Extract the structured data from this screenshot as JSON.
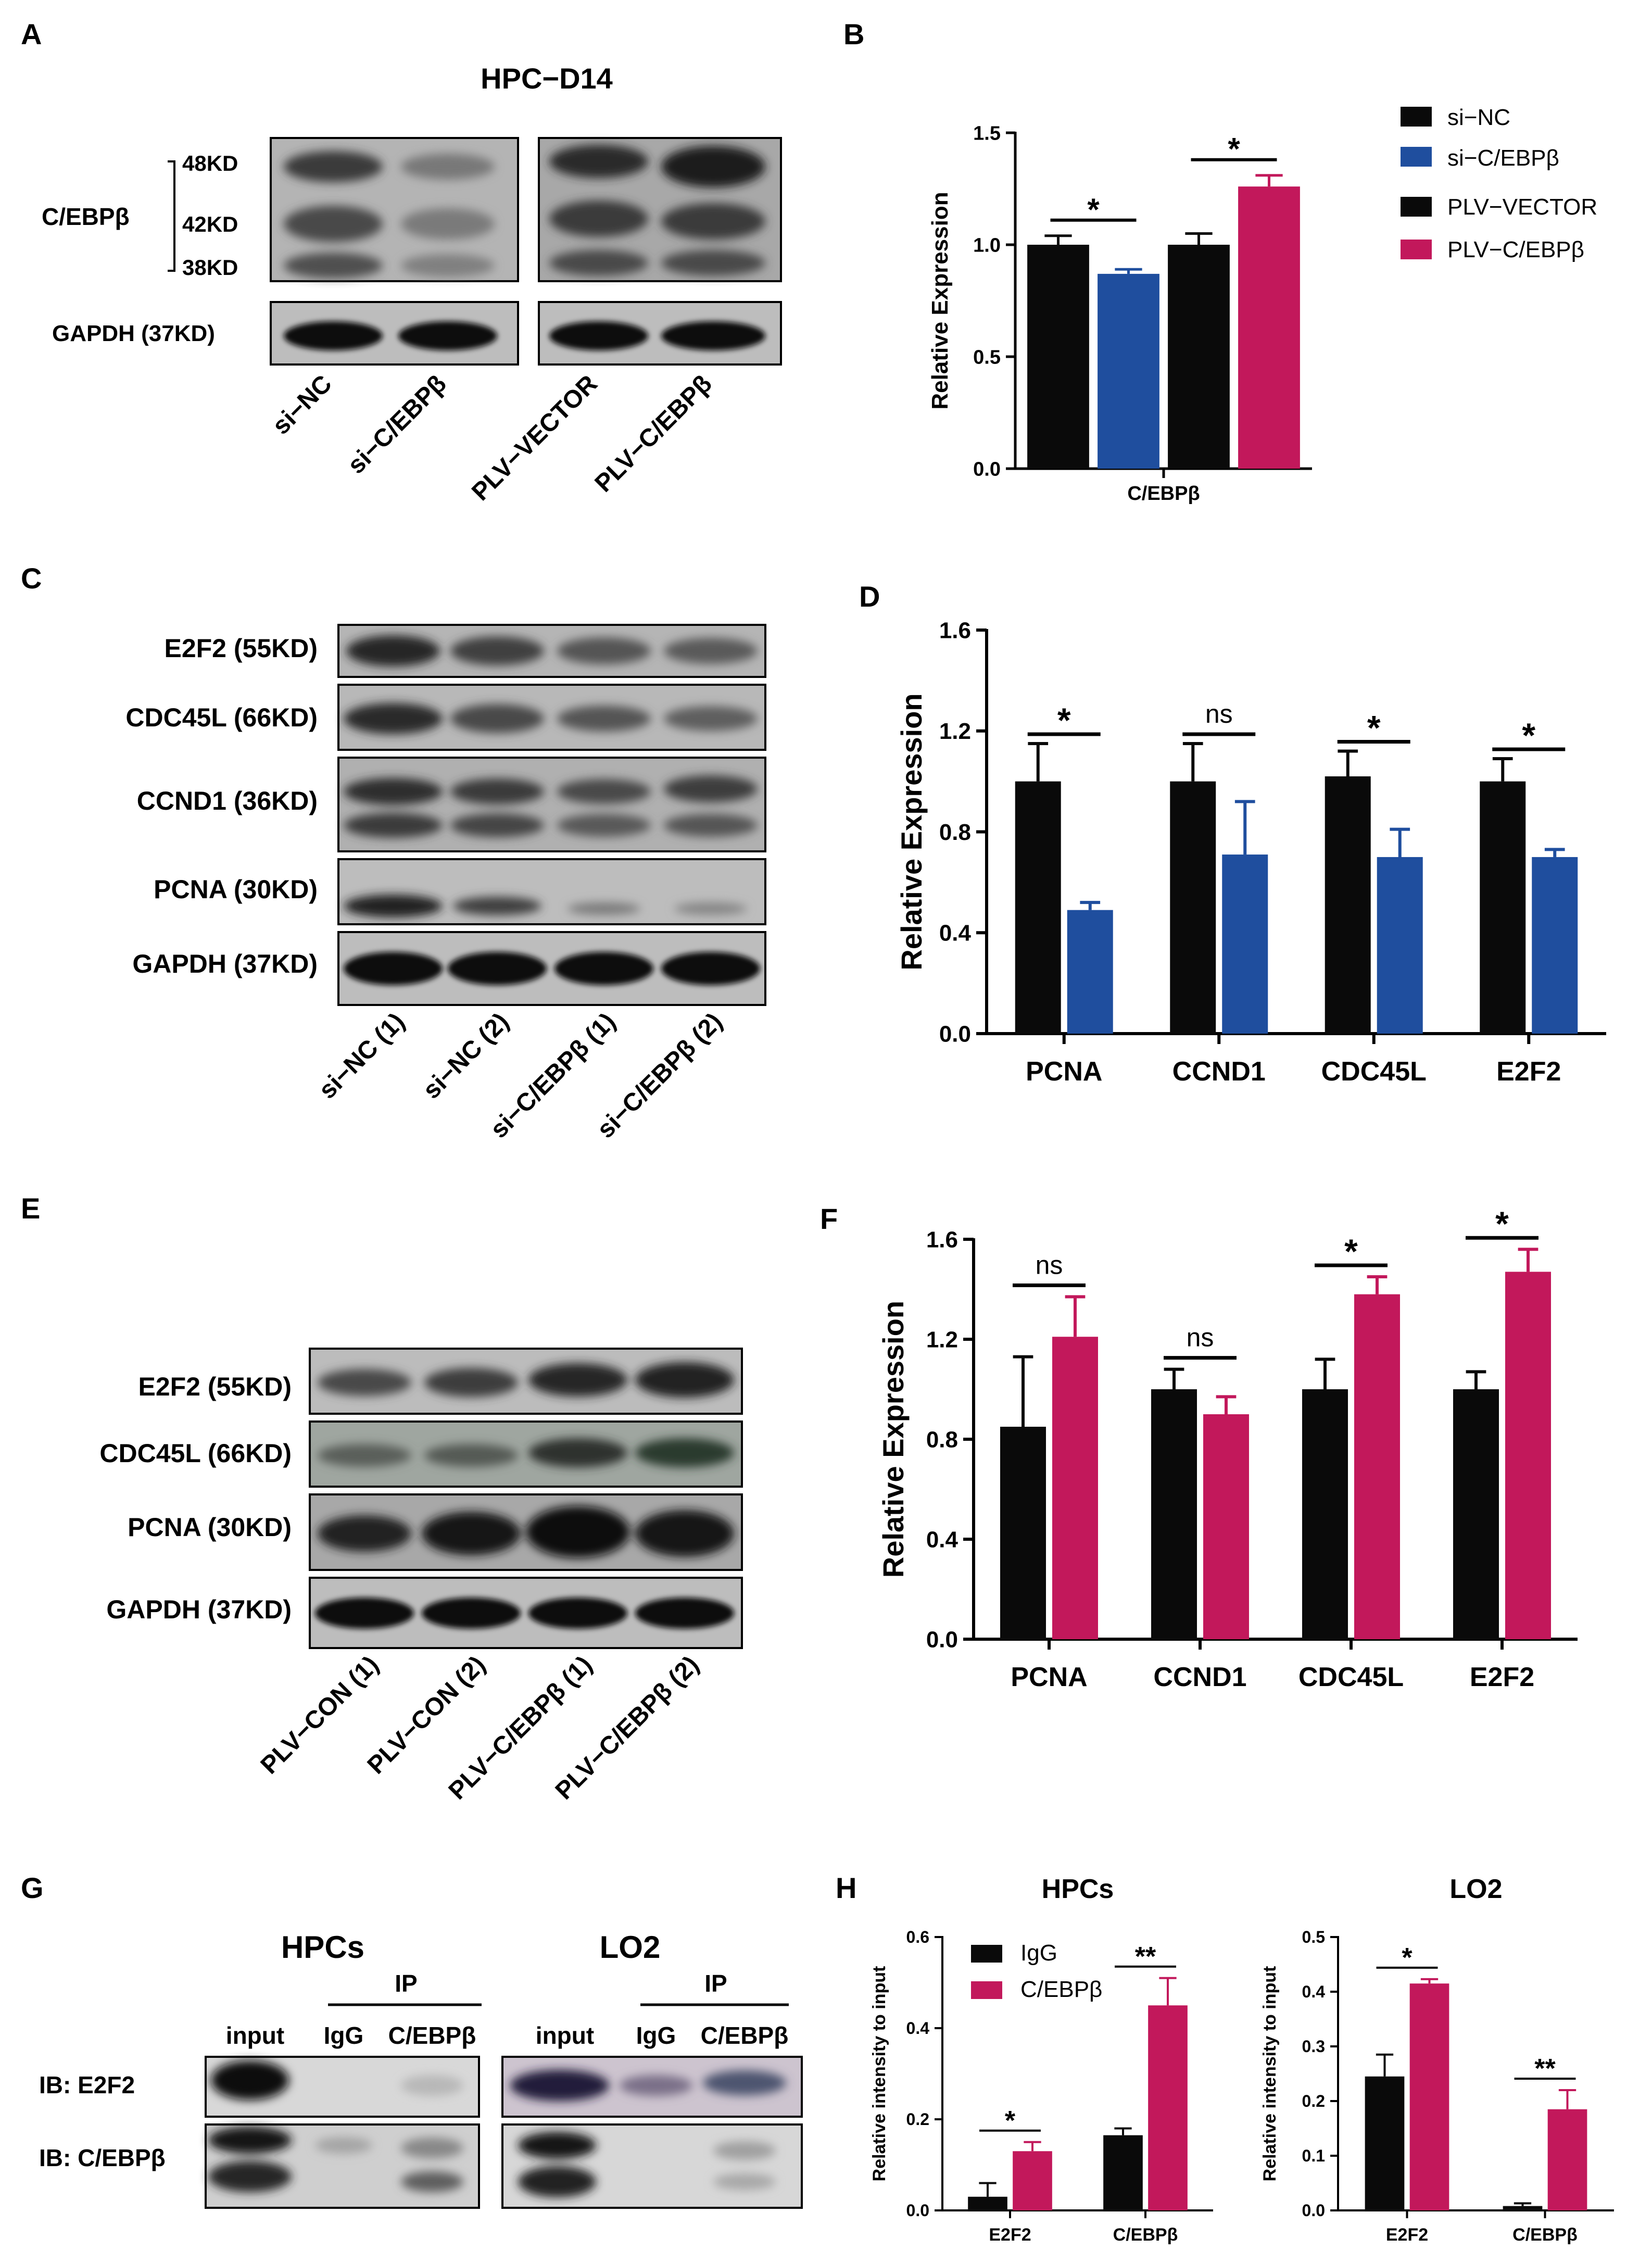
{
  "colors": {
    "black": "#0a0a0a",
    "blue": "#1f4e9e",
    "pink": "#c2185b"
  },
  "panelA": {
    "letter": "A",
    "title": "HPC−D14",
    "protein": "C/EBPβ",
    "kd": [
      "48KD",
      "42KD",
      "38KD"
    ],
    "loading": "GAPDH (37KD)",
    "lanes": [
      "si−NC",
      "si−C/EBPβ",
      "PLV−VECTOR",
      "PLV−C/EBPβ"
    ]
  },
  "panelB": {
    "letter": "B",
    "legend": [
      "si−NC",
      "si−C/EBPβ",
      "PLV−VECTOR",
      "PLV−C/EBPβ"
    ]
  },
  "panelC": {
    "letter": "C",
    "rows": [
      "E2F2 (55KD)",
      "CDC45L (66KD)",
      "CCND1 (36KD)",
      "PCNA (30KD)",
      "GAPDH (37KD)"
    ],
    "lanes": [
      "si−NC (1)",
      "si−NC (2)",
      "si−C/EBPβ (1)",
      "si−C/EBPβ (2)"
    ]
  },
  "panelD": {
    "letter": "D"
  },
  "panelE": {
    "letter": "E",
    "rows": [
      "E2F2 (55KD)",
      "CDC45L (66KD)",
      "PCNA (30KD)",
      "GAPDH (37KD)"
    ],
    "lanes": [
      "PLV−CON (1)",
      "PLV−CON (2)",
      "PLV−C/EBPβ (1)",
      "PLV−C/EBPβ (2)"
    ]
  },
  "panelF": {
    "letter": "F"
  },
  "panelG": {
    "letter": "G",
    "groups": [
      {
        "title": "HPCs",
        "ip": "IP",
        "lanes": [
          "input",
          "IgG",
          "C/EBPβ"
        ]
      },
      {
        "title": "LO2",
        "ip": "IP",
        "lanes": [
          "input",
          "IgG",
          "C/EBPβ"
        ]
      }
    ],
    "ib": [
      "IB: E2F2",
      "IB: C/EBPβ"
    ]
  },
  "panelH": {
    "letter": "H",
    "legend": [
      "IgG",
      "C/EBPβ"
    ]
  },
  "chart_data": [
    {
      "id": "B",
      "type": "bar",
      "categories": [
        "C/EBPβ"
      ],
      "ylabel": "Relative  Expression",
      "ylim": [
        0,
        1.5
      ],
      "yticks": [
        0.0,
        0.5,
        1.0,
        1.5
      ],
      "series": [
        {
          "name": "si−NC",
          "values": [
            1.0
          ],
          "err": [
            0.04
          ]
        },
        {
          "name": "si−C/EBPβ",
          "values": [
            0.87
          ],
          "err": [
            0.02
          ]
        },
        {
          "name": "PLV−VECTOR",
          "values": [
            1.0
          ],
          "err": [
            0.05
          ]
        },
        {
          "name": "PLV−C/EBPβ",
          "values": [
            1.26
          ],
          "err": [
            0.05
          ]
        }
      ],
      "annotations": [
        {
          "text": "*",
          "pair": [
            0,
            1
          ]
        },
        {
          "text": "*",
          "pair": [
            2,
            3
          ]
        }
      ]
    },
    {
      "id": "D",
      "type": "bar",
      "categories": [
        "PCNA",
        "CCND1",
        "CDC45L",
        "E2F2"
      ],
      "ylabel": "Relative  Expression",
      "ylim": [
        0,
        1.6
      ],
      "yticks": [
        0.0,
        0.4,
        0.8,
        1.2,
        1.6
      ],
      "series": [
        {
          "name": "si−NC",
          "values": [
            1.0,
            1.0,
            1.02,
            1.0
          ],
          "err": [
            0.15,
            0.15,
            0.1,
            0.09
          ]
        },
        {
          "name": "si−C/EBPβ",
          "values": [
            0.49,
            0.71,
            0.7,
            0.7
          ],
          "err": [
            0.03,
            0.21,
            0.11,
            0.03
          ]
        }
      ],
      "annotations": [
        "*",
        "ns",
        "*",
        "*"
      ]
    },
    {
      "id": "F",
      "type": "bar",
      "categories": [
        "PCNA",
        "CCND1",
        "CDC45L",
        "E2F2"
      ],
      "ylabel": "Relative  Expression",
      "ylim": [
        0,
        1.6
      ],
      "yticks": [
        0.0,
        0.4,
        0.8,
        1.2,
        1.6
      ],
      "series": [
        {
          "name": "PLV−CON",
          "values": [
            0.85,
            1.0,
            1.0,
            1.0
          ],
          "err": [
            0.28,
            0.08,
            0.12,
            0.07
          ]
        },
        {
          "name": "PLV−C/EBPβ",
          "values": [
            1.21,
            0.9,
            1.38,
            1.47
          ],
          "err": [
            0.16,
            0.07,
            0.07,
            0.09
          ]
        }
      ],
      "annotations": [
        "ns",
        "ns",
        "*",
        "*"
      ]
    },
    {
      "id": "H-HPCs",
      "type": "bar",
      "title": "HPCs",
      "categories": [
        "E2F2",
        "C/EBPβ"
      ],
      "ylabel": "Relative  intensity to input",
      "ylim": [
        0,
        0.6
      ],
      "yticks": [
        0.0,
        0.2,
        0.4,
        0.6
      ],
      "series": [
        {
          "name": "IgG",
          "values": [
            0.03,
            0.165
          ],
          "err": [
            0.03,
            0.015
          ]
        },
        {
          "name": "C/EBPβ",
          "values": [
            0.13,
            0.45
          ],
          "err": [
            0.02,
            0.06
          ]
        }
      ],
      "annotations": [
        "*",
        "**"
      ]
    },
    {
      "id": "H-LO2",
      "type": "bar",
      "title": "LO2",
      "categories": [
        "E2F2",
        "C/EBPβ"
      ],
      "ylabel": "Relative  intensity to input",
      "ylim": [
        0,
        0.5
      ],
      "yticks": [
        0.0,
        0.1,
        0.2,
        0.3,
        0.4,
        0.5
      ],
      "series": [
        {
          "name": "IgG",
          "values": [
            0.245,
            0.008
          ],
          "err": [
            0.04,
            0.005
          ]
        },
        {
          "name": "C/EBPβ",
          "values": [
            0.415,
            0.185
          ],
          "err": [
            0.008,
            0.035
          ]
        }
      ],
      "annotations": [
        "*",
        "**"
      ]
    }
  ]
}
